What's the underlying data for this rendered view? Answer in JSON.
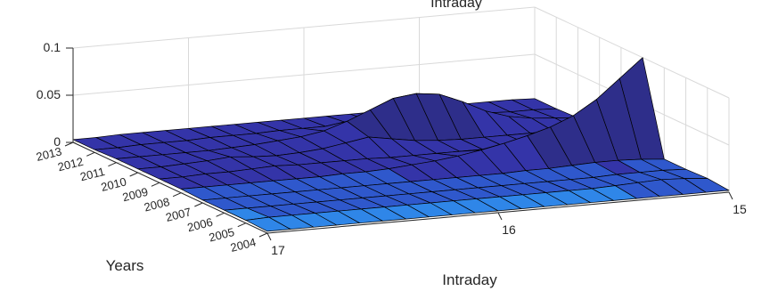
{
  "chart_data": {
    "type": "surface",
    "title": "Intraday",
    "xlabel": "Intraday",
    "ylabel": "Years",
    "zlabel": "",
    "x_ticks": [
      "15",
      "16",
      "17"
    ],
    "y_ticks": [
      "2004",
      "2005",
      "2006",
      "2007",
      "2008",
      "2009",
      "2010",
      "2011",
      "2012",
      "2013"
    ],
    "z_ticks": [
      "0",
      "0.05",
      "0.1"
    ],
    "xlim": [
      15,
      17
    ],
    "zlim": [
      0,
      0.1
    ],
    "grid": true,
    "colormap": [
      "#0a0a4a",
      "#23236e",
      "#2e2e8a",
      "#3434a8",
      "#2f58cc",
      "#2f86e8"
    ],
    "x": [
      15.0,
      15.1,
      15.2,
      15.3,
      15.4,
      15.5,
      15.6,
      15.7,
      15.8,
      15.9,
      16.0,
      16.1,
      16.2,
      16.3,
      16.4,
      16.5,
      16.6,
      16.7,
      16.8,
      16.9,
      17.0
    ],
    "series": [
      {
        "name": "2004",
        "values": [
          0.002,
          0.002,
          0.002,
          0.002,
          0.002,
          0.002,
          0.002,
          0.002,
          0.002,
          0.002,
          0.002,
          0.002,
          0.002,
          0.002,
          0.002,
          0.002,
          0.002,
          0.002,
          0.002,
          0.002,
          0.002
        ]
      },
      {
        "name": "2005",
        "values": [
          0.004,
          0.006,
          0.007,
          0.006,
          0.005,
          0.004,
          0.004,
          0.004,
          0.004,
          0.004,
          0.004,
          0.004,
          0.004,
          0.004,
          0.004,
          0.004,
          0.004,
          0.004,
          0.004,
          0.004,
          0.003
        ]
      },
      {
        "name": "2006",
        "values": [
          0.003,
          0.004,
          0.004,
          0.004,
          0.003,
          0.003,
          0.003,
          0.003,
          0.003,
          0.003,
          0.003,
          0.003,
          0.003,
          0.003,
          0.003,
          0.003,
          0.003,
          0.003,
          0.003,
          0.003,
          0.003
        ]
      },
      {
        "name": "2007",
        "values": [
          0.003,
          0.005,
          0.006,
          0.006,
          0.005,
          0.004,
          0.004,
          0.003,
          0.003,
          0.003,
          0.003,
          0.003,
          0.003,
          0.003,
          0.003,
          0.003,
          0.003,
          0.003,
          0.003,
          0.003,
          0.003
        ]
      },
      {
        "name": "2008",
        "values": [
          0.1,
          0.08,
          0.06,
          0.045,
          0.035,
          0.028,
          0.022,
          0.017,
          0.013,
          0.01,
          0.008,
          0.006,
          0.005,
          0.005,
          0.004,
          0.004,
          0.004,
          0.004,
          0.004,
          0.004,
          0.004
        ]
      },
      {
        "name": "2009",
        "values": [
          0.005,
          0.006,
          0.006,
          0.006,
          0.006,
          0.005,
          0.005,
          0.005,
          0.005,
          0.005,
          0.005,
          0.006,
          0.006,
          0.006,
          0.006,
          0.007,
          0.006,
          0.005,
          0.005,
          0.004,
          0.004
        ]
      },
      {
        "name": "2010",
        "values": [
          0.004,
          0.005,
          0.005,
          0.005,
          0.005,
          0.005,
          0.005,
          0.006,
          0.008,
          0.012,
          0.016,
          0.012,
          0.008,
          0.006,
          0.005,
          0.006,
          0.008,
          0.006,
          0.005,
          0.004,
          0.004
        ]
      },
      {
        "name": "2011",
        "values": [
          0.004,
          0.006,
          0.008,
          0.012,
          0.02,
          0.032,
          0.042,
          0.045,
          0.042,
          0.032,
          0.022,
          0.014,
          0.01,
          0.008,
          0.006,
          0.005,
          0.004,
          0.004,
          0.004,
          0.004,
          0.004
        ]
      },
      {
        "name": "2012",
        "values": [
          0.003,
          0.004,
          0.004,
          0.005,
          0.005,
          0.006,
          0.006,
          0.007,
          0.007,
          0.007,
          0.006,
          0.006,
          0.006,
          0.005,
          0.005,
          0.005,
          0.004,
          0.004,
          0.004,
          0.003,
          0.003
        ]
      },
      {
        "name": "2013",
        "values": [
          0.003,
          0.004,
          0.004,
          0.004,
          0.004,
          0.004,
          0.004,
          0.004,
          0.004,
          0.004,
          0.004,
          0.004,
          0.004,
          0.004,
          0.004,
          0.004,
          0.004,
          0.004,
          0.004,
          0.003,
          0.003
        ]
      }
    ]
  }
}
